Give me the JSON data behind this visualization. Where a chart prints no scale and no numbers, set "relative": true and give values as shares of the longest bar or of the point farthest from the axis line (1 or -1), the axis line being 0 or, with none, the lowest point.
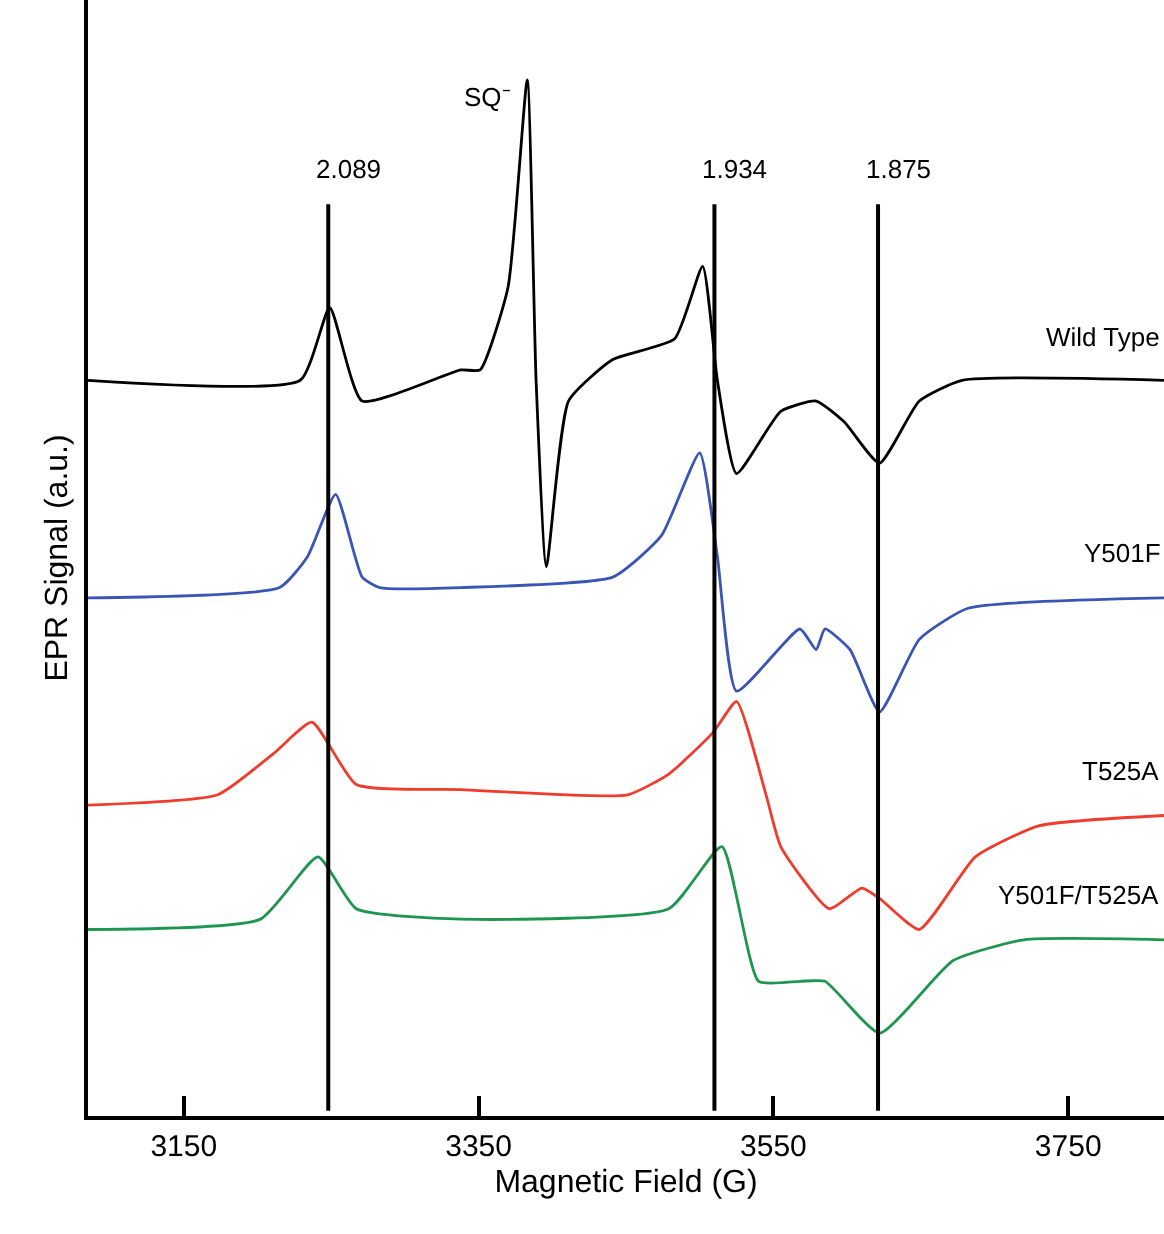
{
  "chart_data": {
    "type": "line",
    "relative": true,
    "xlabel": "Magnetic Field (G)",
    "ylabel": "EPR Signal (a.u.)",
    "xlim": [
      3085,
      3815
    ],
    "xticks": [
      3150,
      3350,
      3550,
      3750
    ],
    "legend": false,
    "marker": "none",
    "line_style": "solid",
    "series": [
      {
        "name": "Wild Type",
        "color": "#000000",
        "x": [
          3085,
          3229,
          3249,
          3271,
          3338,
          3351,
          3370,
          3383,
          3389,
          3396,
          3411,
          3441,
          3483,
          3502,
          3512,
          3525,
          3555,
          3579,
          3598,
          3622,
          3649,
          3678,
          3815
        ],
        "values": [
          0.71,
          0.71,
          0.78,
          0.69,
          0.72,
          0.72,
          0.8,
          1.0,
          0.71,
          0.53,
          0.69,
          0.73,
          0.75,
          0.82,
          0.71,
          0.62,
          0.68,
          0.69,
          0.67,
          0.63,
          0.69,
          0.71,
          0.71
        ]
      },
      {
        "name": "Y501F",
        "color": "#3a55b4",
        "x": [
          3085,
          3215,
          3234,
          3253,
          3271,
          3283,
          3338,
          3441,
          3474,
          3500,
          3512,
          3525,
          3568,
          3579,
          3585,
          3602,
          3622,
          3649,
          3682,
          3815
        ],
        "values": [
          0.5,
          0.51,
          0.54,
          0.6,
          0.52,
          0.51,
          0.51,
          0.52,
          0.56,
          0.64,
          0.54,
          0.41,
          0.47,
          0.45,
          0.47,
          0.45,
          0.39,
          0.46,
          0.49,
          0.5
        ]
      },
      {
        "name": "T525A",
        "color": "#f03c2d",
        "x": [
          3085,
          3173,
          3211,
          3237,
          3267,
          3338,
          3451,
          3479,
          3509,
          3525,
          3545,
          3555,
          3588,
          3610,
          3622,
          3649,
          3687,
          3730,
          3815
        ],
        "values": [
          0.3,
          0.31,
          0.35,
          0.38,
          0.32,
          0.315,
          0.31,
          0.33,
          0.37,
          0.4,
          0.31,
          0.26,
          0.2,
          0.22,
          0.21,
          0.18,
          0.25,
          0.28,
          0.29
        ]
      },
      {
        "name": "Y501F/T525A",
        "color": "#1e9650",
        "x": [
          3085,
          3202,
          3241,
          3267,
          3338,
          3479,
          3515,
          3540,
          3568,
          3585,
          3622,
          3672,
          3720,
          3815
        ],
        "values": [
          0.18,
          0.19,
          0.25,
          0.2,
          0.19,
          0.2,
          0.26,
          0.13,
          0.13,
          0.13,
          0.08,
          0.15,
          0.17,
          0.17
        ]
      }
    ],
    "ref_lines": [
      {
        "axis": "x",
        "value": 3248,
        "color": "#000000"
      },
      {
        "axis": "x",
        "value": 3510,
        "color": "#000000"
      },
      {
        "axis": "x",
        "value": 3621,
        "color": "#000000"
      }
    ],
    "annotations": [
      {
        "text": "2.089",
        "x": 3248,
        "y": 0.88
      },
      {
        "text": "1.934",
        "x": 3510,
        "y": 0.88
      },
      {
        "text": "1.875",
        "x": 3621,
        "y": 0.88
      },
      "SQ⁻"
    ]
  }
}
